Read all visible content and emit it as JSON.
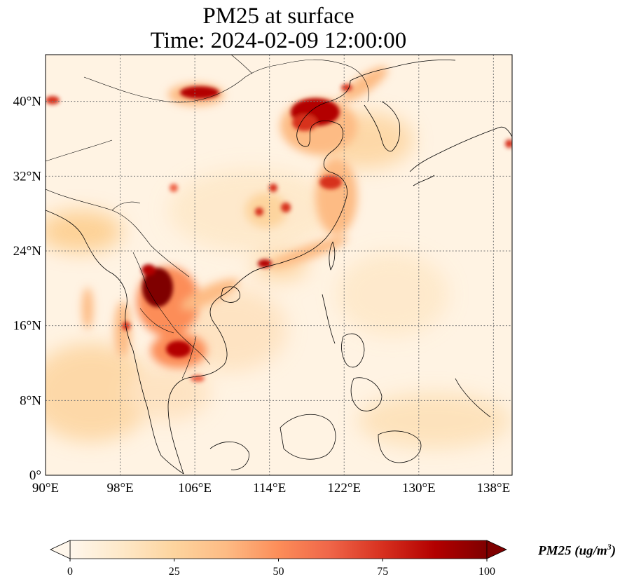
{
  "title": {
    "line1": "PM25 at surface",
    "line2": "Time: 2024-02-09 12:00:00"
  },
  "map": {
    "projection": "PlateCarree",
    "lon_range": [
      90,
      140
    ],
    "lat_range": [
      0,
      45
    ],
    "gridlines": "dotted",
    "x_ticks": [
      {
        "value": 90,
        "label": "90°E"
      },
      {
        "value": 98,
        "label": "98°E"
      },
      {
        "value": 106,
        "label": "106°E"
      },
      {
        "value": 114,
        "label": "114°E"
      },
      {
        "value": 122,
        "label": "122°E"
      },
      {
        "value": 130,
        "label": "130°E"
      },
      {
        "value": 138,
        "label": "138°E"
      }
    ],
    "y_ticks": [
      {
        "value": 0,
        "label": "0°"
      },
      {
        "value": 8,
        "label": "8°N"
      },
      {
        "value": 16,
        "label": "16°N"
      },
      {
        "value": 24,
        "label": "24°N"
      },
      {
        "value": 32,
        "label": "32°N"
      },
      {
        "value": 40,
        "label": "40°N"
      }
    ],
    "colormap": "OrRd",
    "hotspots": [
      {
        "region": "north-china-plain",
        "lon": 118.5,
        "lat": 39.2,
        "value": 100
      },
      {
        "region": "inner-mongolia-band",
        "lon": 107.5,
        "lat": 40.5,
        "value": 95
      },
      {
        "region": "yunnan-laos",
        "lon": 103.0,
        "lat": 20.5,
        "value": 100
      },
      {
        "region": "cambodia",
        "lon": 104.5,
        "lat": 13.5,
        "value": 95
      },
      {
        "region": "yangtze-delta",
        "lon": 120.5,
        "lat": 31.0,
        "value": 85
      },
      {
        "region": "central-china",
        "lon": 114.0,
        "lat": 29.5,
        "value": 75
      },
      {
        "region": "pearl-river-delta",
        "lon": 113.5,
        "lat": 22.8,
        "value": 80
      },
      {
        "region": "west-edge",
        "lon": 90.8,
        "lat": 40.1,
        "value": 80
      }
    ]
  },
  "colorbar": {
    "min": 0,
    "max": 100,
    "extend": "both",
    "ticks": [
      {
        "value": 0,
        "label": "0"
      },
      {
        "value": 25,
        "label": "25"
      },
      {
        "value": 50,
        "label": "50"
      },
      {
        "value": 75,
        "label": "75"
      },
      {
        "value": 100,
        "label": "100"
      }
    ],
    "label": "PM25 (ug/m",
    "label_sup": "3",
    "label_close": ")",
    "stops": [
      "#fff7ec",
      "#fee8c8",
      "#fdd49e",
      "#fdbb84",
      "#fc8d59",
      "#ef6548",
      "#d7301f",
      "#b30000",
      "#7f0000"
    ]
  }
}
